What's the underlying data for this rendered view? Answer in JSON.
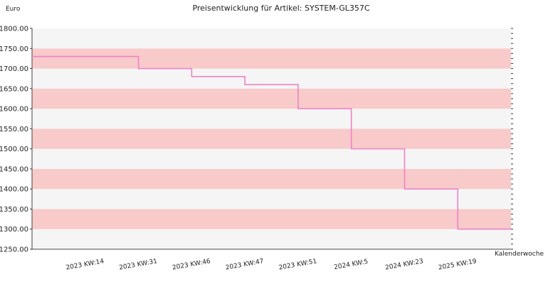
{
  "chart_data": {
    "type": "line",
    "title": "Preisentwicklung für Artikel: SYSTEM-GL357C",
    "ylabel": "Euro",
    "xlabel": "Kalenderwoche",
    "ylim": [
      1250,
      1800
    ],
    "y_ticks": [
      "1800.00",
      "1750.00",
      "1700.00",
      "1650.00",
      "1600.00",
      "1550.00",
      "1500.00",
      "1450.00",
      "1400.00",
      "1350.00",
      "1300.00",
      "1250.00"
    ],
    "categories": [
      "2023 KW:14",
      "2023 KW:31",
      "2023 KW:46",
      "2023 KW:47",
      "2023 KW:51",
      "2024 KW:5",
      "2024 KW:23",
      "2025 KW:19"
    ],
    "step": true,
    "series": [
      {
        "values": [
          1730,
          1700,
          1680,
          1660,
          1600,
          1500,
          1400,
          1300
        ]
      }
    ],
    "colors": {
      "line": "#ee82c8",
      "band_alt": "#f8caca",
      "band_base": "#f5f5f5",
      "axis": "#444444"
    },
    "grid": true
  }
}
